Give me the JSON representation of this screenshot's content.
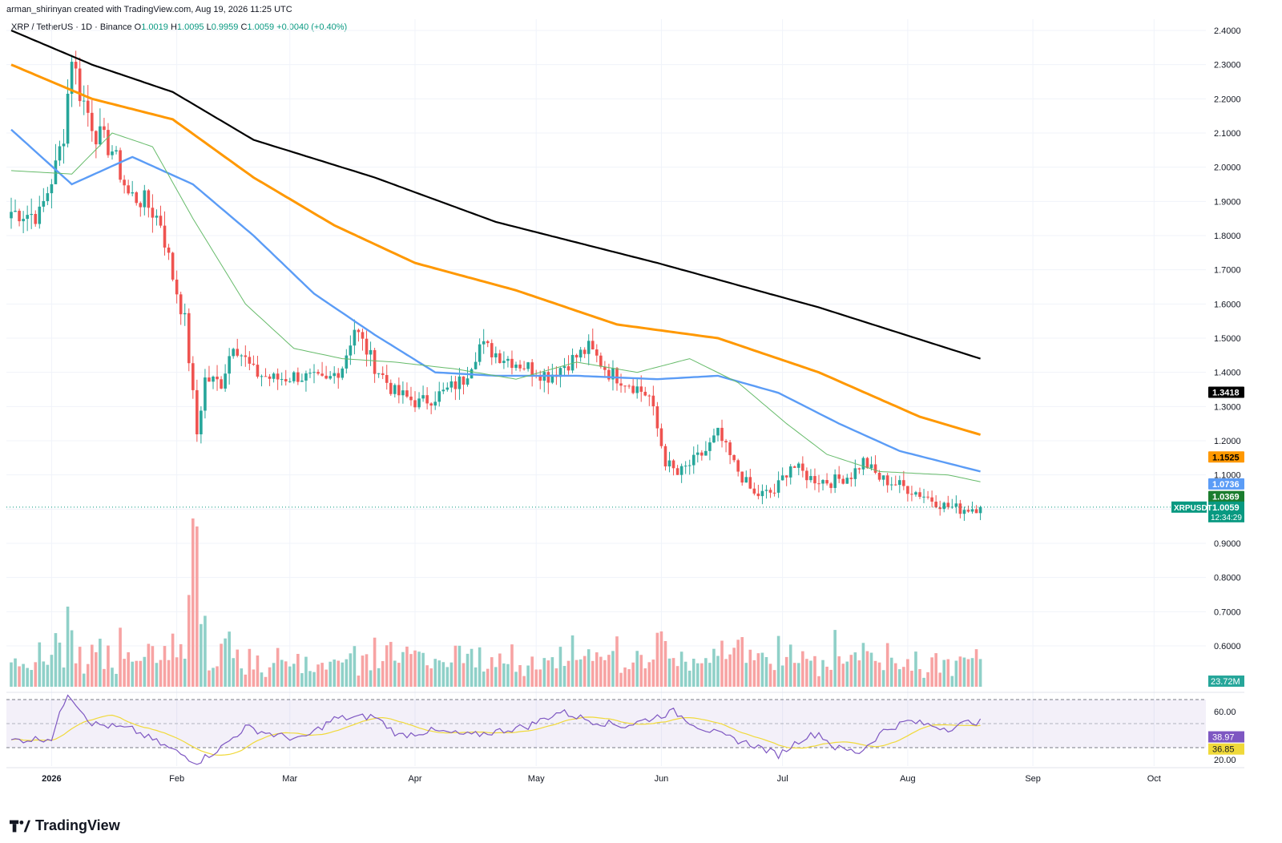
{
  "header": {
    "attribution": "arman_shirinyan created with TradingView.com, Aug 19, 2026 11:25 UTC"
  },
  "legend": {
    "symbol": "XRP / TetherUS · 1D · Binance",
    "o_label": "O",
    "o": "1.0019",
    "h_label": "H",
    "h": "1.0095",
    "l_label": "L",
    "l": "0.9959",
    "c_label": "C",
    "c": "1.0059",
    "change": "+0.0040 (+0.40%)"
  },
  "brand": {
    "name": "TradingView"
  },
  "badges": {
    "ma200": "1.3418",
    "ma100": "1.1525",
    "ma50": "1.0736",
    "ma20": "1.0369",
    "symbol": "XRPUSDT",
    "last": "1.0059",
    "countdown": "12:34:29",
    "volume": "23.72M",
    "rsi": "38.97",
    "rsi_ma": "36.85"
  },
  "colors": {
    "up": "#26a69a",
    "down": "#ef5350",
    "vol_up": "#8fd0c8",
    "vol_down": "#f7a3a3",
    "ma200": "#000000",
    "ma100": "#ff9800",
    "ma50": "#5b9cf6",
    "ma20": "#66bb6a",
    "rsi": "#7e57c2",
    "rsi_ma": "#f0d93a",
    "last_price": "#089981"
  },
  "chart_data": {
    "type": "candlestick",
    "symbol": "XRPUSDT",
    "timeframe": "1D",
    "y_axis": {
      "ticks": [
        "2.4000",
        "2.3000",
        "2.2000",
        "2.1000",
        "2.0000",
        "1.9000",
        "1.8000",
        "1.7000",
        "1.6000",
        "1.5000",
        "1.4000",
        "1.3000",
        "1.2000",
        "1.1000",
        "1.0000",
        "0.9000",
        "0.8000",
        "0.7000",
        "0.6000"
      ],
      "range": [
        0.55,
        2.43
      ]
    },
    "x_axis": {
      "ticks": [
        "2026",
        "Feb",
        "Mar",
        "Apr",
        "May",
        "Jun",
        "Jul",
        "Aug",
        "Sep",
        "Oct"
      ]
    },
    "date_range": [
      "2025-12-22",
      "2026-08-19"
    ],
    "close_anchors": [
      [
        "2025-12-22",
        1.87
      ],
      [
        "2025-12-29",
        1.86
      ],
      [
        "2026-01-02",
        2.0
      ],
      [
        "2026-01-04",
        2.1
      ],
      [
        "2026-01-06",
        2.33
      ],
      [
        "2026-01-08",
        2.22
      ],
      [
        "2026-01-12",
        2.1
      ],
      [
        "2026-01-16",
        2.05
      ],
      [
        "2026-01-20",
        1.92
      ],
      [
        "2026-01-24",
        1.9
      ],
      [
        "2026-01-28",
        1.84
      ],
      [
        "2026-01-31",
        1.68
      ],
      [
        "2026-02-03",
        1.55
      ],
      [
        "2026-02-06",
        1.22
      ],
      [
        "2026-02-08",
        1.38
      ],
      [
        "2026-02-12",
        1.37
      ],
      [
        "2026-02-15",
        1.49
      ],
      [
        "2026-02-20",
        1.4
      ],
      [
        "2026-02-25",
        1.38
      ],
      [
        "2026-03-03",
        1.39
      ],
      [
        "2026-03-10",
        1.37
      ],
      [
        "2026-03-14",
        1.42
      ],
      [
        "2026-03-17",
        1.53
      ],
      [
        "2026-03-22",
        1.42
      ],
      [
        "2026-03-27",
        1.34
      ],
      [
        "2026-04-02",
        1.31
      ],
      [
        "2026-04-08",
        1.34
      ],
      [
        "2026-04-13",
        1.38
      ],
      [
        "2026-04-17",
        1.48
      ],
      [
        "2026-04-22",
        1.45
      ],
      [
        "2026-04-28",
        1.42
      ],
      [
        "2026-05-04",
        1.39
      ],
      [
        "2026-05-09",
        1.43
      ],
      [
        "2026-05-14",
        1.47
      ],
      [
        "2026-05-19",
        1.4
      ],
      [
        "2026-05-24",
        1.37
      ],
      [
        "2026-05-29",
        1.33
      ],
      [
        "2026-06-02",
        1.14
      ],
      [
        "2026-06-05",
        1.1
      ],
      [
        "2026-06-08",
        1.13
      ],
      [
        "2026-06-12",
        1.17
      ],
      [
        "2026-06-15",
        1.22
      ],
      [
        "2026-06-19",
        1.13
      ],
      [
        "2026-06-24",
        1.04
      ],
      [
        "2026-06-29",
        1.05
      ],
      [
        "2026-07-03",
        1.13
      ],
      [
        "2026-07-08",
        1.09
      ],
      [
        "2026-07-13",
        1.08
      ],
      [
        "2026-07-18",
        1.1
      ],
      [
        "2026-07-21",
        1.14
      ],
      [
        "2026-07-25",
        1.09
      ],
      [
        "2026-07-30",
        1.07
      ],
      [
        "2026-08-05",
        1.04
      ],
      [
        "2026-08-10",
        1.01
      ],
      [
        "2026-08-14",
        1.0
      ],
      [
        "2026-08-19",
        1.0059
      ]
    ],
    "last_candle": {
      "open": 1.0019,
      "high": 1.0095,
      "low": 0.9959,
      "close": 1.0059
    },
    "moving_averages": [
      {
        "badge": "1.3418",
        "anchors": [
          [
            0,
            2.4
          ],
          [
            20,
            2.3
          ],
          [
            40,
            2.22
          ],
          [
            60,
            2.08
          ],
          [
            90,
            1.97
          ],
          [
            120,
            1.84
          ],
          [
            160,
            1.72
          ],
          [
            200,
            1.59
          ],
          [
            240,
            1.44
          ],
          [
            263,
            1.3418
          ]
        ]
      },
      {
        "badge": "1.1525",
        "anchors": [
          [
            0,
            2.3
          ],
          [
            20,
            2.2
          ],
          [
            40,
            2.14
          ],
          [
            60,
            1.97
          ],
          [
            80,
            1.83
          ],
          [
            100,
            1.72
          ],
          [
            125,
            1.64
          ],
          [
            150,
            1.54
          ],
          [
            175,
            1.5
          ],
          [
            200,
            1.4
          ],
          [
            225,
            1.27
          ],
          [
            245,
            1.2
          ],
          [
            263,
            1.1525
          ]
        ]
      },
      {
        "badge": "1.0736",
        "anchors": [
          [
            0,
            2.11
          ],
          [
            15,
            1.95
          ],
          [
            30,
            2.03
          ],
          [
            45,
            1.95
          ],
          [
            60,
            1.8
          ],
          [
            75,
            1.63
          ],
          [
            90,
            1.51
          ],
          [
            105,
            1.4
          ],
          [
            120,
            1.39
          ],
          [
            140,
            1.39
          ],
          [
            160,
            1.38
          ],
          [
            175,
            1.39
          ],
          [
            190,
            1.34
          ],
          [
            205,
            1.25
          ],
          [
            220,
            1.17
          ],
          [
            240,
            1.11
          ],
          [
            263,
            1.0736
          ]
        ]
      },
      {
        "badge": "1.0369",
        "anchors": [
          [
            0,
            1.99
          ],
          [
            15,
            1.98
          ],
          [
            25,
            2.1
          ],
          [
            35,
            2.06
          ],
          [
            45,
            1.85
          ],
          [
            58,
            1.6
          ],
          [
            70,
            1.47
          ],
          [
            82,
            1.44
          ],
          [
            95,
            1.43
          ],
          [
            110,
            1.41
          ],
          [
            125,
            1.38
          ],
          [
            140,
            1.43
          ],
          [
            155,
            1.4
          ],
          [
            168,
            1.44
          ],
          [
            180,
            1.37
          ],
          [
            192,
            1.25
          ],
          [
            202,
            1.16
          ],
          [
            215,
            1.11
          ],
          [
            232,
            1.1
          ],
          [
            248,
            1.06
          ],
          [
            263,
            1.0369
          ]
        ]
      }
    ],
    "volume": {
      "last_label": "23.72M"
    },
    "rsi": {
      "levels": [
        "60.00",
        "20.00"
      ],
      "value": "38.97",
      "ma_value": "36.85",
      "anchors": [
        [
          0,
          36
        ],
        [
          10,
          38
        ],
        [
          14,
          76
        ],
        [
          20,
          50
        ],
        [
          30,
          45
        ],
        [
          40,
          28
        ],
        [
          46,
          18
        ],
        [
          52,
          30
        ],
        [
          58,
          47
        ],
        [
          66,
          40
        ],
        [
          72,
          37
        ],
        [
          80,
          54
        ],
        [
          90,
          56
        ],
        [
          96,
          40
        ],
        [
          104,
          44
        ],
        [
          114,
          40
        ],
        [
          128,
          48
        ],
        [
          136,
          60
        ],
        [
          144,
          52
        ],
        [
          152,
          48
        ],
        [
          158,
          54
        ],
        [
          164,
          60
        ],
        [
          170,
          48
        ],
        [
          176,
          40
        ],
        [
          184,
          32
        ],
        [
          190,
          24
        ],
        [
          196,
          38
        ],
        [
          200,
          42
        ],
        [
          204,
          30
        ],
        [
          210,
          26
        ],
        [
          216,
          44
        ],
        [
          222,
          52
        ],
        [
          232,
          46
        ],
        [
          238,
          52
        ],
        [
          246,
          48
        ],
        [
          256,
          36
        ],
        [
          263,
          38.97
        ]
      ]
    }
  }
}
